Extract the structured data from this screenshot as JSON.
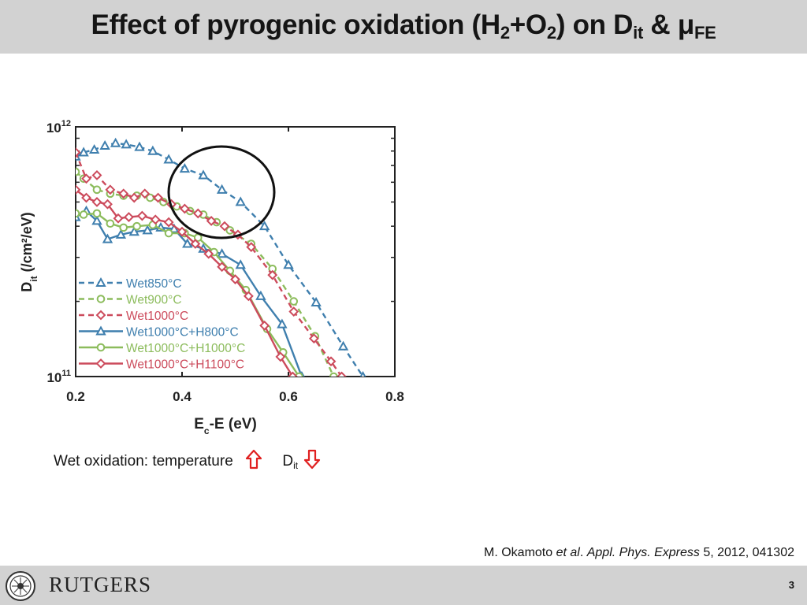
{
  "slide": {
    "title_parts": [
      "Effect of pyrogenic oxidation (H",
      "2",
      "+O",
      "2",
      ") on D",
      "it",
      " & μ",
      "FE"
    ],
    "caption_main": "Wet oxidation: temperature",
    "caption_d": "D",
    "caption_sub": "it",
    "reference": {
      "author": "M. Okamoto ",
      "etal": "et al",
      "dot": ". ",
      "journal": "Appl. Phys. Express",
      "rest": " 5, 2012, 041302"
    },
    "page_number": "3",
    "logo_text": "RUTGERS",
    "colors": {
      "header": "#d2d2d2",
      "arrow": "#e02020",
      "blue": "#3f7fae",
      "green": "#8cbc5c",
      "red": "#cc4b5c"
    },
    "icons": {
      "up": "hollow-up-arrow-icon",
      "down": "hollow-down-arrow-icon"
    }
  },
  "chart_data": {
    "type": "line",
    "ylabel_main": "D",
    "ylabel_sub": "it",
    "ylabel_unit": " (/cm²/eV)",
    "xlabel_main": "E",
    "xlabel_sub": "c",
    "xlabel_rest": "-E (eV)",
    "y_scale": "log",
    "ylim": [
      100000000000.0,
      1000000000000.0
    ],
    "xlim": [
      0.2,
      0.8
    ],
    "x_ticks": [
      0.2,
      0.4,
      0.6,
      0.8
    ],
    "x_tick_labels": [
      "0.2",
      "0.4",
      "0.6",
      "0.8"
    ],
    "y_tick_labels": [
      {
        "base": "10",
        "exp": "12",
        "value": 1000000000000.0
      },
      {
        "base": "10",
        "exp": "11",
        "value": 100000000000.0
      }
    ],
    "legend_position": "bottom-left",
    "series": [
      {
        "name": "Wet850°C",
        "color": "#3f7fae",
        "dash": true,
        "marker": "triangle",
        "x": [
          0.2,
          0.215,
          0.235,
          0.255,
          0.275,
          0.295,
          0.32,
          0.345,
          0.375,
          0.405,
          0.44,
          0.475,
          0.51,
          0.555,
          0.6,
          0.652,
          0.703,
          0.74
        ],
        "y": [
          760000000000.0,
          790000000000.0,
          810000000000.0,
          840000000000.0,
          860000000000.0,
          850000000000.0,
          830000000000.0,
          800000000000.0,
          740000000000.0,
          680000000000.0,
          640000000000.0,
          560000000000.0,
          500000000000.0,
          400000000000.0,
          280000000000.0,
          198000000000.0,
          132000000000.0,
          100000000000.0
        ]
      },
      {
        "name": "Wet900°C",
        "color": "#8cbc5c",
        "dash": true,
        "marker": "circle",
        "x": [
          0.2,
          0.215,
          0.24,
          0.265,
          0.29,
          0.315,
          0.34,
          0.365,
          0.39,
          0.415,
          0.44,
          0.465,
          0.49,
          0.53,
          0.57,
          0.61,
          0.65,
          0.685
        ],
        "y": [
          660000000000.0,
          620000000000.0,
          560000000000.0,
          540000000000.0,
          530000000000.0,
          530000000000.0,
          520000000000.0,
          500000000000.0,
          480000000000.0,
          460000000000.0,
          445000000000.0,
          415000000000.0,
          385000000000.0,
          340000000000.0,
          270000000000.0,
          200000000000.0,
          145000000000.0,
          100000000000.0
        ]
      },
      {
        "name": "Wet1000°C",
        "color": "#cc4b5c",
        "dash": true,
        "marker": "diamond",
        "x": [
          0.2,
          0.22,
          0.24,
          0.265,
          0.29,
          0.31,
          0.33,
          0.355,
          0.38,
          0.405,
          0.43,
          0.455,
          0.48,
          0.505,
          0.53,
          0.57,
          0.61,
          0.648,
          0.68,
          0.7
        ],
        "y": [
          790000000000.0,
          620000000000.0,
          640000000000.0,
          560000000000.0,
          540000000000.0,
          520000000000.0,
          540000000000.0,
          520000000000.0,
          490000000000.0,
          470000000000.0,
          450000000000.0,
          420000000000.0,
          400000000000.0,
          370000000000.0,
          330000000000.0,
          255000000000.0,
          182000000000.0,
          142000000000.0,
          115000000000.0,
          100000000000.0
        ]
      },
      {
        "name": "Wet1000°C+H800°C",
        "color": "#3f7fae",
        "dash": false,
        "marker": "triangle",
        "x": [
          0.2,
          0.22,
          0.24,
          0.26,
          0.285,
          0.31,
          0.335,
          0.36,
          0.385,
          0.41,
          0.44,
          0.475,
          0.51,
          0.548,
          0.588,
          0.625
        ],
        "y": [
          435000000000.0,
          460000000000.0,
          420000000000.0,
          355000000000.0,
          370000000000.0,
          380000000000.0,
          385000000000.0,
          395000000000.0,
          390000000000.0,
          340000000000.0,
          325000000000.0,
          310000000000.0,
          280000000000.0,
          210000000000.0,
          162000000000.0,
          100000000000.0
        ]
      },
      {
        "name": "Wet1000°C+H1000°C",
        "color": "#8cbc5c",
        "dash": false,
        "marker": "circle",
        "x": [
          0.2,
          0.215,
          0.24,
          0.265,
          0.29,
          0.315,
          0.345,
          0.375,
          0.405,
          0.43,
          0.46,
          0.49,
          0.52,
          0.56,
          0.59,
          0.62
        ],
        "y": [
          450000000000.0,
          445000000000.0,
          450000000000.0,
          410000000000.0,
          395000000000.0,
          400000000000.0,
          405000000000.0,
          375000000000.0,
          375000000000.0,
          360000000000.0,
          315000000000.0,
          265000000000.0,
          222000000000.0,
          155000000000.0,
          125000000000.0,
          100000000000.0
        ]
      },
      {
        "name": "Wet1000°C+H1100°C",
        "color": "#cc4b5c",
        "dash": false,
        "marker": "diamond",
        "x": [
          0.2,
          0.22,
          0.24,
          0.26,
          0.28,
          0.3,
          0.325,
          0.35,
          0.375,
          0.4,
          0.425,
          0.45,
          0.475,
          0.5,
          0.525,
          0.555,
          0.585,
          0.608
        ],
        "y": [
          560000000000.0,
          520000000000.0,
          500000000000.0,
          490000000000.0,
          430000000000.0,
          435000000000.0,
          440000000000.0,
          425000000000.0,
          415000000000.0,
          380000000000.0,
          340000000000.0,
          310000000000.0,
          275000000000.0,
          245000000000.0,
          210000000000.0,
          160000000000.0,
          120000000000.0,
          100000000000.0
        ]
      }
    ]
  }
}
